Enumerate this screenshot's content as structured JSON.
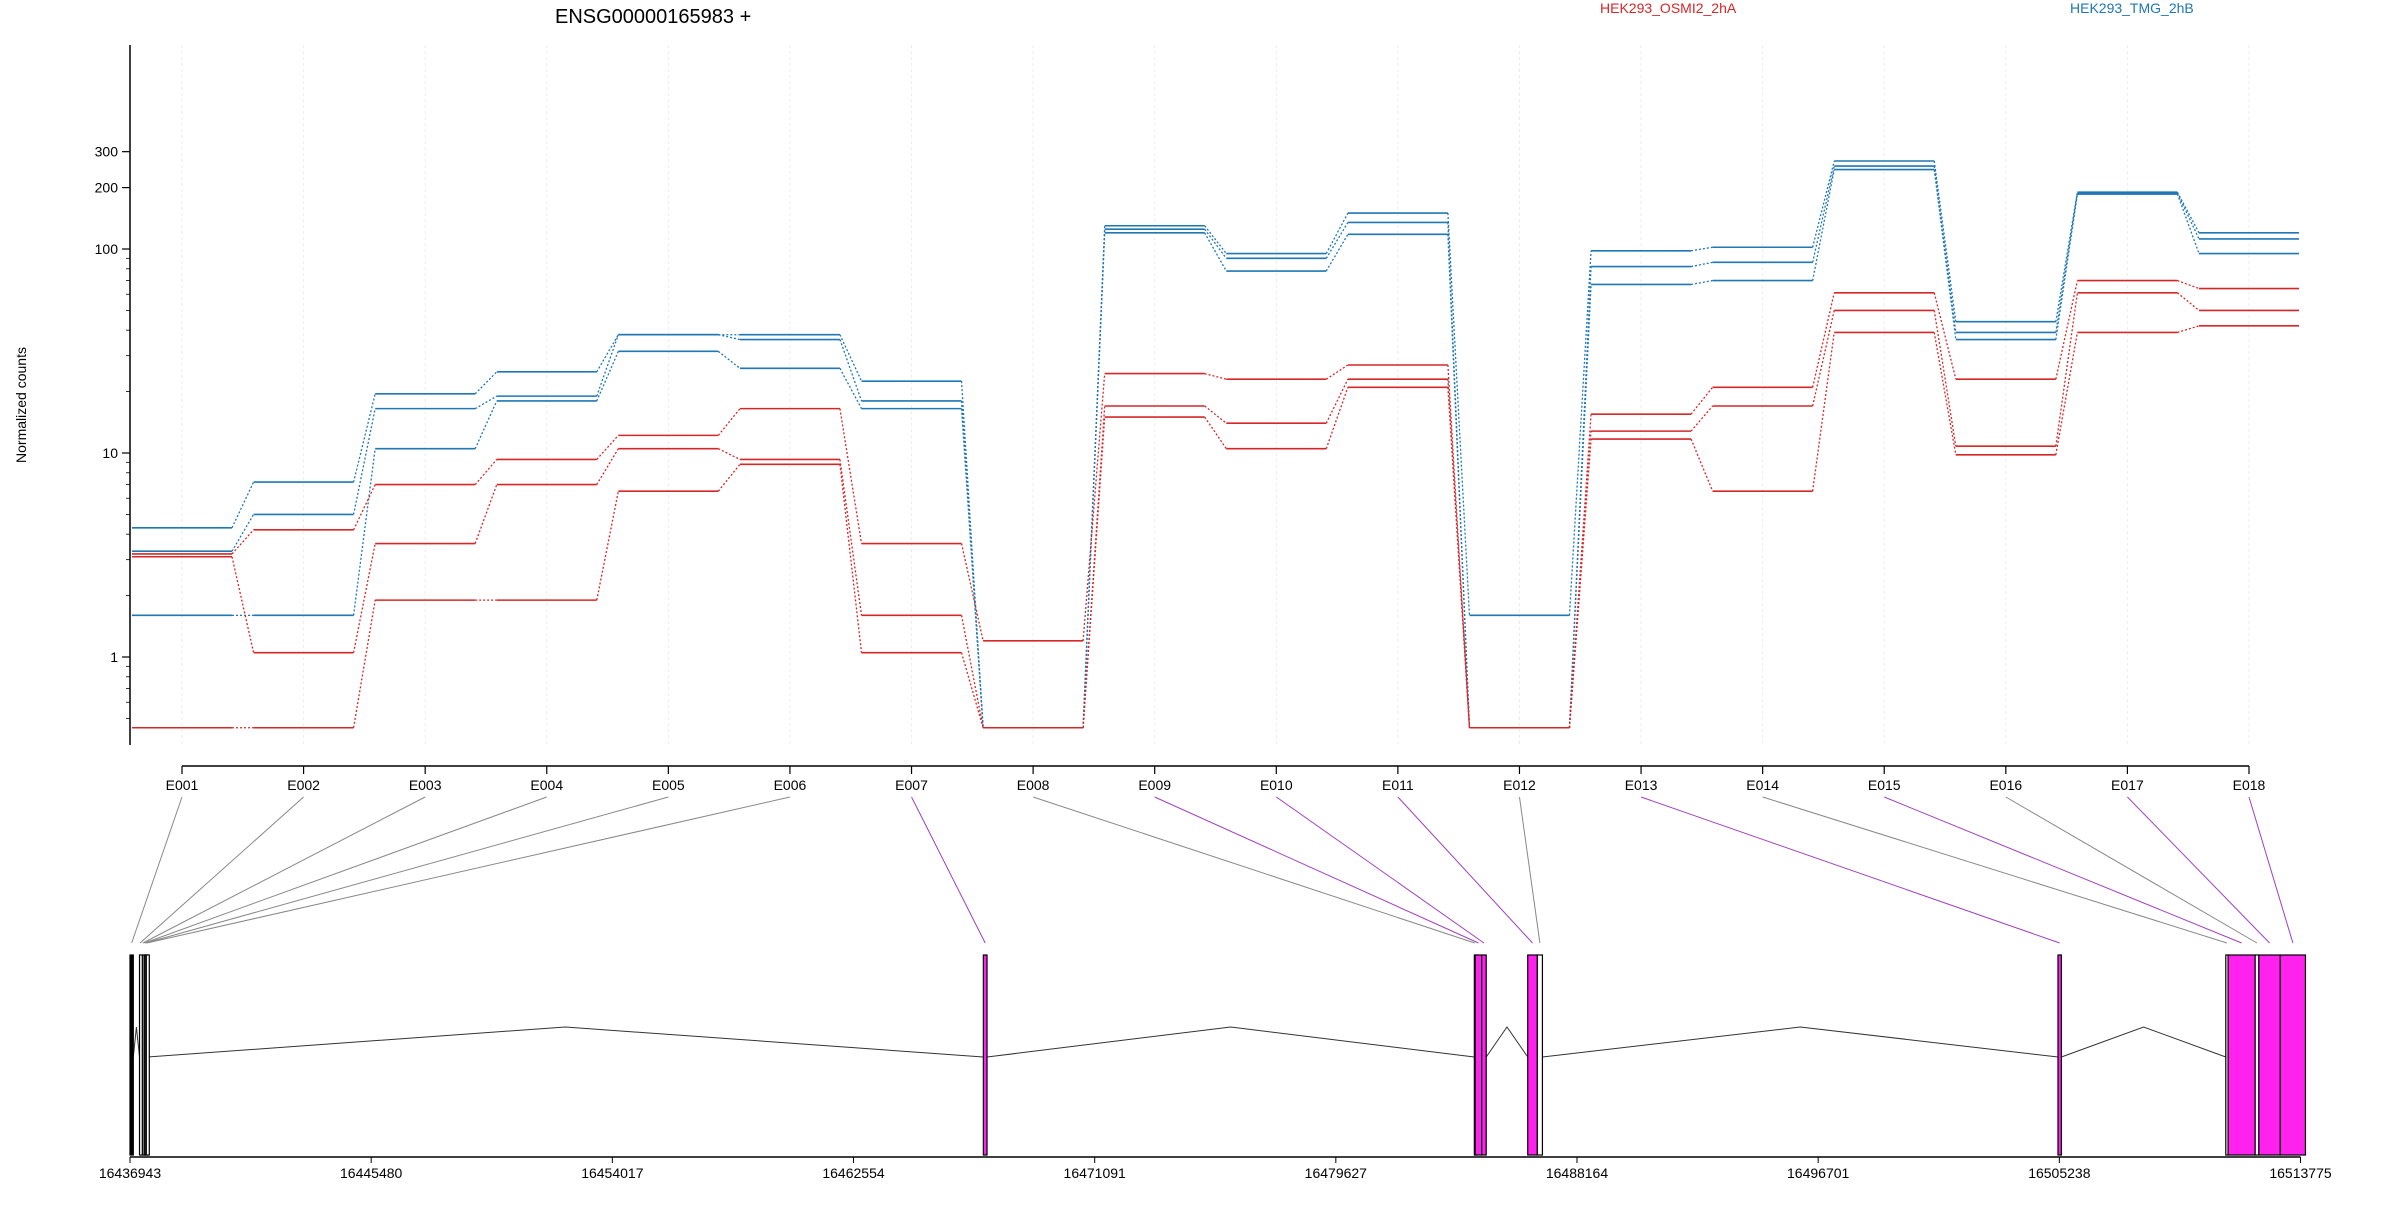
{
  "chart_data": {
    "type": "line",
    "title": "ENSG00000165983 +",
    "ylabel": "Normalized counts",
    "y_scale": "log",
    "y_ticks": [
      1,
      10,
      100,
      200,
      300
    ],
    "categories": [
      "E001",
      "E002",
      "E003",
      "E004",
      "E005",
      "E006",
      "E007",
      "E008",
      "E009",
      "E010",
      "E011",
      "E012",
      "E013",
      "E014",
      "E015",
      "E016",
      "E017",
      "E018"
    ],
    "legend": [
      {
        "name": "HEK293_OSMI2_2hA",
        "color": "#d62728"
      },
      {
        "name": "HEK293_TMG_2hB",
        "color": "#1f77b4"
      }
    ],
    "series": [
      {
        "group": "HEK293_TMG_2hB",
        "color": "#1f77b4",
        "values": [
          4.3,
          7.2,
          19.5,
          25,
          38,
          38,
          22.5,
          0.45,
          130,
          95,
          150,
          1.6,
          98,
          102,
          270,
          44,
          190,
          120
        ]
      },
      {
        "group": "HEK293_TMG_2hB",
        "color": "#1f77b4",
        "values": [
          3.3,
          5,
          16.5,
          19,
          38,
          36,
          18,
          0.45,
          125,
          90,
          135,
          0.45,
          82,
          86,
          255,
          39,
          188,
          112
        ]
      },
      {
        "group": "HEK293_TMG_2hB",
        "color": "#1f77b4",
        "values": [
          1.6,
          1.6,
          10.5,
          18,
          31.5,
          26,
          16.5,
          0.45,
          120,
          78,
          118,
          0.45,
          67,
          70,
          245,
          36,
          186,
          95
        ]
      },
      {
        "group": "HEK293_OSMI2_2hA",
        "color": "#d62728",
        "values": [
          3.2,
          4.2,
          7,
          9.3,
          12.2,
          16.5,
          3.6,
          1.2,
          24.5,
          23,
          27,
          0.45,
          15.5,
          21,
          61,
          23,
          70,
          64
        ]
      },
      {
        "group": "HEK293_OSMI2_2hA",
        "color": "#d62728",
        "values": [
          3.1,
          1.05,
          3.6,
          7,
          10.5,
          9.3,
          1.6,
          0.45,
          17,
          14,
          23,
          0.45,
          12.8,
          17,
          50,
          10.8,
          61,
          50
        ]
      },
      {
        "group": "HEK293_OSMI2_2hA",
        "color": "#d62728",
        "values": [
          0.45,
          0.45,
          1.9,
          1.9,
          6.5,
          8.8,
          1.05,
          0.45,
          15,
          10.5,
          21,
          0.45,
          11.7,
          6.5,
          39,
          9.8,
          39,
          42
        ]
      }
    ],
    "gene_model": {
      "genomic_ticks": [
        16436943,
        16445480,
        16454017,
        16462554,
        16471091,
        16479627,
        16488164,
        16496701,
        16505238,
        16513775
      ],
      "range": [
        16436943,
        16514500
      ],
      "exons": [
        {
          "id": "E001",
          "start": 16436943,
          "end": 16437060,
          "color": "#000000"
        },
        {
          "id": "E002",
          "start": 16437280,
          "end": 16437320,
          "color": "#ffffff"
        },
        {
          "id": "E003",
          "start": 16437380,
          "end": 16437420,
          "color": "#ffffff"
        },
        {
          "id": "E004",
          "start": 16437440,
          "end": 16437470,
          "color": "#ffffff"
        },
        {
          "id": "E005",
          "start": 16437480,
          "end": 16437510,
          "color": "#ffffff"
        },
        {
          "id": "E006",
          "start": 16437520,
          "end": 16437560,
          "color": "#ffffff"
        },
        {
          "id": "E007",
          "start": 16467150,
          "end": 16467280,
          "color": "#ff22ee"
        },
        {
          "id": "E008",
          "start": 16484530,
          "end": 16484560,
          "color": "#ffffff"
        },
        {
          "id": "E009",
          "start": 16484560,
          "end": 16484790,
          "color": "#ff22ee"
        },
        {
          "id": "E010",
          "start": 16484790,
          "end": 16484950,
          "color": "#ff22ee"
        },
        {
          "id": "E011",
          "start": 16486420,
          "end": 16486760,
          "color": "#ff22ee"
        },
        {
          "id": "E012",
          "start": 16486760,
          "end": 16486940,
          "color": "#ffffff"
        },
        {
          "id": "E013",
          "start": 16505190,
          "end": 16505310,
          "color": "#ff22ee"
        },
        {
          "id": "E014",
          "start": 16511130,
          "end": 16511210,
          "color": "#ffffff"
        },
        {
          "id": "E015",
          "start": 16511210,
          "end": 16512170,
          "color": "#ff22ee"
        },
        {
          "id": "E016",
          "start": 16512170,
          "end": 16512300,
          "color": "#ffffff"
        },
        {
          "id": "E017",
          "start": 16512300,
          "end": 16513060,
          "color": "#ff22ee"
        },
        {
          "id": "E018",
          "start": 16513060,
          "end": 16513950,
          "color": "#ff22ee"
        }
      ],
      "introns": [
        [
          16437060,
          16437280
        ],
        [
          16437560,
          16467150
        ],
        [
          16467280,
          16484530
        ],
        [
          16484950,
          16486420
        ],
        [
          16486940,
          16505190
        ],
        [
          16505310,
          16511130
        ]
      ],
      "highlighted_exons": [
        "E007",
        "E009",
        "E010",
        "E011",
        "E013",
        "E015",
        "E017",
        "E018"
      ]
    }
  }
}
